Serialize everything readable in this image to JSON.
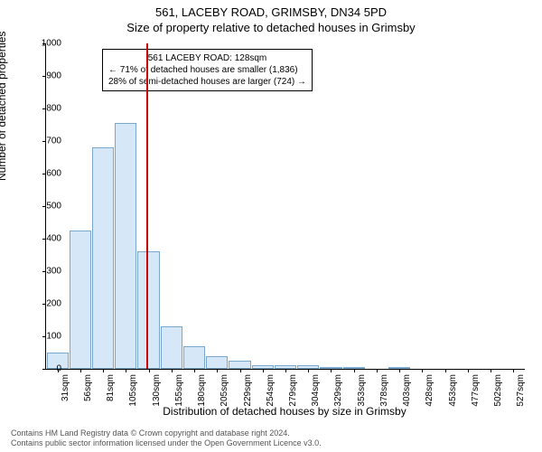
{
  "header": {
    "address": "561, LACEBY ROAD, GRIMSBY, DN34 5PD",
    "subtitle": "Size of property relative to detached houses in Grimsby"
  },
  "annotation": {
    "line1": "561 LACEBY ROAD: 128sqm",
    "line2": "← 71% of detached houses are smaller (1,836)",
    "line3": "28% of semi-detached houses are larger (724) →",
    "border_color": "#000000",
    "background": "#ffffff",
    "fontsize": 10
  },
  "chart": {
    "type": "histogram",
    "xlabel": "Distribution of detached houses by size in Grimsby",
    "ylabel": "Number of detached properties",
    "ylim": [
      0,
      1000
    ],
    "ytick_step": 100,
    "bar_fill": "#d6e8f7",
    "bar_border": "#7aa8cc",
    "background": "#ffffff",
    "axis_color": "#000000",
    "tick_fontsize": 10,
    "label_fontsize": 12,
    "marker": {
      "value_sqm": 128,
      "color": "#cc0000",
      "width": 2
    },
    "bins": [
      {
        "label": "31sqm",
        "count": 50
      },
      {
        "label": "56sqm",
        "count": 425
      },
      {
        "label": "81sqm",
        "count": 680
      },
      {
        "label": "105sqm",
        "count": 755
      },
      {
        "label": "130sqm",
        "count": 360
      },
      {
        "label": "155sqm",
        "count": 130
      },
      {
        "label": "180sqm",
        "count": 70
      },
      {
        "label": "205sqm",
        "count": 40
      },
      {
        "label": "229sqm",
        "count": 25
      },
      {
        "label": "254sqm",
        "count": 10
      },
      {
        "label": "279sqm",
        "count": 10
      },
      {
        "label": "304sqm",
        "count": 10
      },
      {
        "label": "329sqm",
        "count": 5
      },
      {
        "label": "353sqm",
        "count": 5
      },
      {
        "label": "378sqm",
        "count": 0
      },
      {
        "label": "403sqm",
        "count": 2
      },
      {
        "label": "428sqm",
        "count": 0
      },
      {
        "label": "453sqm",
        "count": 0
      },
      {
        "label": "477sqm",
        "count": 0
      },
      {
        "label": "502sqm",
        "count": 0
      },
      {
        "label": "527sqm",
        "count": 0
      }
    ]
  },
  "footer": {
    "line1": "Contains HM Land Registry data © Crown copyright and database right 2024.",
    "line2": "Contains public sector information licensed under the Open Government Licence v3.0."
  }
}
